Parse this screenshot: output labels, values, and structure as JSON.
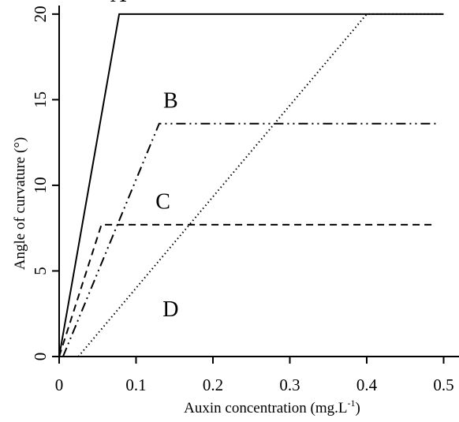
{
  "chart_data": {
    "type": "line",
    "xlabel": "Auxin concentration (mg.L",
    "xlabel_sup": "-1",
    "xlabel_end": ")",
    "ylabel": "Angle of curvature (°)",
    "xlim": [
      0,
      0.52
    ],
    "ylim": [
      0,
      20.5
    ],
    "x_ticks": [
      0,
      0.1,
      0.2,
      0.3,
      0.4,
      0.5
    ],
    "x_tick_labels": [
      "0",
      "0.1",
      "0.2",
      "0.3",
      "0.4",
      "0.5"
    ],
    "y_ticks": [
      0,
      5,
      10,
      15,
      20
    ],
    "y_tick_labels": [
      "0",
      "5",
      "10",
      "15",
      "20"
    ],
    "grid": false,
    "series": [
      {
        "label": "A",
        "style": "solid",
        "x": [
          0,
          0.078,
          0.5
        ],
        "y": [
          0,
          20,
          20
        ],
        "label_x": 0.077,
        "label_y": 21.2
      },
      {
        "label": "B",
        "style": "dashdotdot",
        "x": [
          0.005,
          0.13,
          0.49
        ],
        "y": [
          0,
          13.6,
          13.6
        ],
        "label_x": 0.145,
        "label_y": 15.0
      },
      {
        "label": "C",
        "style": "dashed",
        "x": [
          0,
          0.055,
          0.49
        ],
        "y": [
          0,
          7.7,
          7.7
        ],
        "label_x": 0.135,
        "label_y": 9.1
      },
      {
        "label": "D",
        "style": "dotted",
        "x": [
          0.025,
          0.4,
          0.5
        ],
        "y": [
          0,
          20,
          20
        ],
        "label_x": 0.145,
        "label_y": 2.8
      }
    ]
  }
}
